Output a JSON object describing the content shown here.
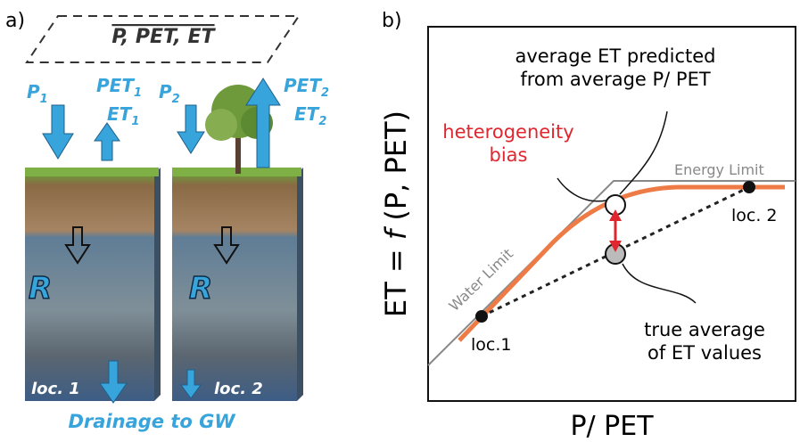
{
  "panel_a": {
    "label": "a)",
    "header": "P, PET, ET",
    "column_1": {
      "precip": {
        "base": "P",
        "sub": "1"
      },
      "pet": {
        "base": "PET",
        "sub": "1"
      },
      "et": {
        "base": "ET",
        "sub": "1"
      },
      "recharge": "R",
      "location": "loc. 1"
    },
    "column_2": {
      "precip": {
        "base": "P",
        "sub": "2"
      },
      "pet": {
        "base": "PET",
        "sub": "2"
      },
      "et": {
        "base": "ET",
        "sub": "2"
      },
      "recharge": "R",
      "location": "loc. 2"
    },
    "footer": "Drainage to GW"
  },
  "panel_b": {
    "label": "b)",
    "y_axis_label": {
      "pre": "ET = ",
      "func": "f",
      "post": " (P, PET)"
    },
    "x_axis_label": "P/ PET",
    "energy_limit": "Energy Limit",
    "water_limit": "Water Limit",
    "predicted_note": [
      "average ET predicted",
      "from average P/ PET"
    ],
    "bias_note": [
      "heterogeneity",
      "bias"
    ],
    "true_note": [
      "true average",
      "of ET values"
    ],
    "point_1": "loc.1",
    "point_2": "loc. 2"
  }
}
